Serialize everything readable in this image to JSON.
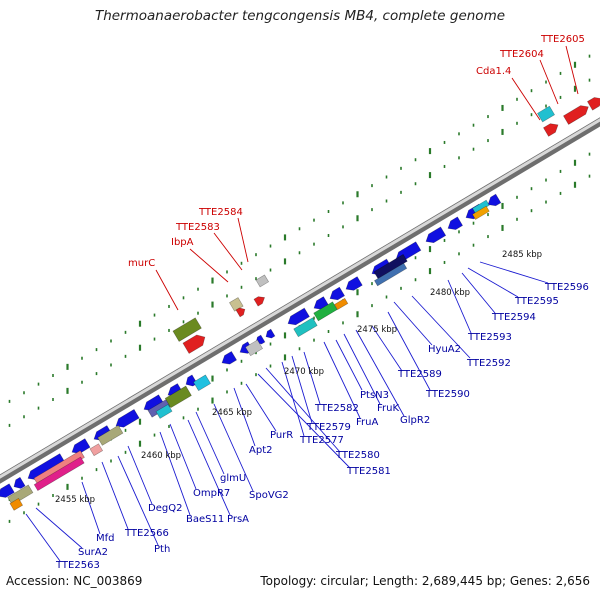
{
  "title": "Thermoanaerobacter tengcongensis MB4, complete genome",
  "footer": {
    "accession": "Accession: NC_003869",
    "summary": "Topology: circular; Length: 2,689,445 bp; Genes: 2,656"
  },
  "colors": {
    "red_label": "#cc0000",
    "blue_label": "#0000a0",
    "backbone": "#888888"
  },
  "tick_labels": [
    "2455 kbp",
    "2460 kbp",
    "2465 kbp",
    "2470 kbp",
    "2475 kbp",
    "2480 kbp",
    "2485 kbp"
  ],
  "red_labels": [
    "TTE2605",
    "TTE2604",
    "Cda1.4",
    "TTE2584",
    "TTE2583",
    "IbpA",
    "murC"
  ],
  "blue_labels": [
    "TTE2596",
    "TTE2595",
    "TTE2594",
    "TTE2593",
    "TTE2592",
    "HyuA2",
    "TTE2589",
    "TTE2590",
    "GlpR2",
    "FruK",
    "PtsN3",
    "FruA",
    "TTE2582",
    "TTE2579",
    "TTE2577",
    "TTE2580",
    "TTE2581",
    "PurR",
    "Apt2",
    "SpoVG2",
    "glmU",
    "PrsA",
    "OmpR7",
    "BaeS11",
    "DegQ2",
    "TTE2566",
    "Pth",
    "Mfd",
    "SurA2",
    "TTE2563"
  ]
}
